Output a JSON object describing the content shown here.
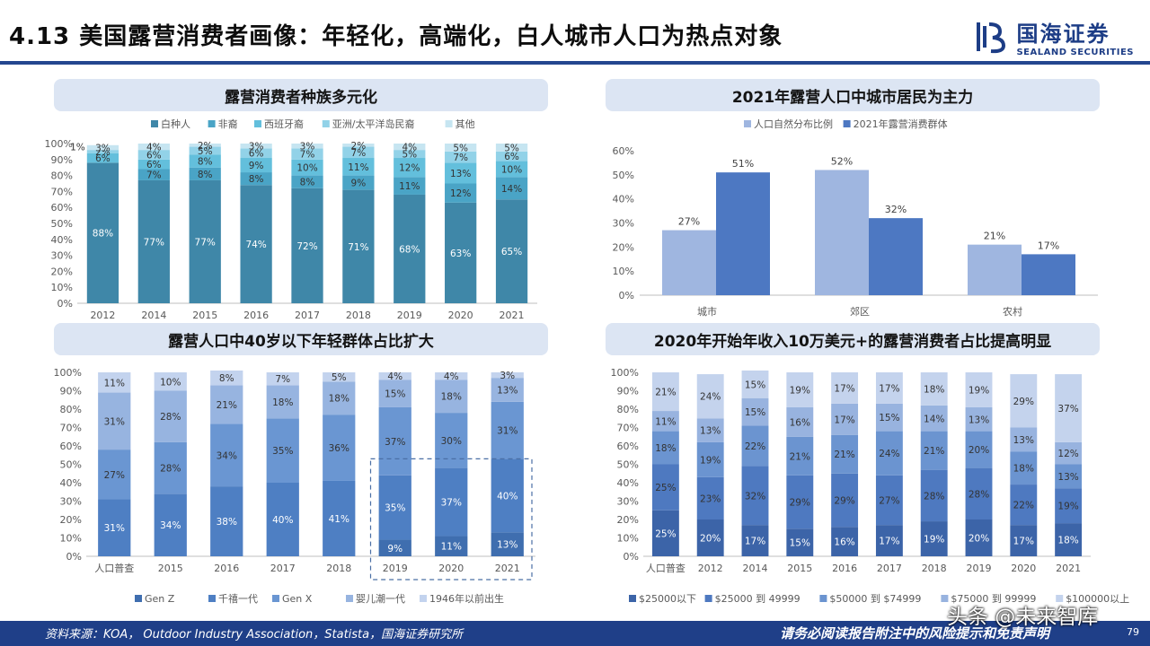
{
  "header": {
    "title": "4.13 美国露营消费者画像：年轻化，高端化，白人城市人口为热点对象",
    "logo_cn": "国海证券",
    "logo_en": "SEALAND SECURITIES"
  },
  "footer": {
    "source": "资料来源：KOA， Outdoor Industry Association，Statista，国海证券研究所",
    "disclaimer": "请务必阅读报告附注中的风险提示和免责声明",
    "page_number": "79",
    "watermark": "头条 @未来智库"
  },
  "colors": {
    "navy": "#1f3f88",
    "panel_title_bg": "#dce5f3"
  },
  "chart_data": [
    {
      "id": "race",
      "type": "bar",
      "stacked": true,
      "title": "露营消费者种族多元化",
      "categories": [
        "2012",
        "2014",
        "2015",
        "2016",
        "2017",
        "2018",
        "2019",
        "2020",
        "2021"
      ],
      "series": [
        {
          "name": "白种人",
          "color": "#3f87a8",
          "values": [
            88,
            77,
            77,
            74,
            72,
            71,
            68,
            63,
            65
          ]
        },
        {
          "name": "非裔",
          "color": "#4aa4c6",
          "values": [
            0,
            7,
            8,
            8,
            8,
            9,
            11,
            12,
            14
          ]
        },
        {
          "name": "西班牙裔",
          "color": "#63bfdc",
          "values": [
            6,
            6,
            8,
            9,
            10,
            11,
            12,
            13,
            10
          ]
        },
        {
          "name": "亚洲/太平洋岛民裔",
          "color": "#92d2e8",
          "values": [
            2,
            6,
            5,
            6,
            7,
            7,
            5,
            7,
            6
          ]
        },
        {
          "name": "其他",
          "color": "#c6e5f1",
          "values": [
            3,
            4,
            2,
            3,
            3,
            2,
            4,
            5,
            5
          ]
        }
      ],
      "labels": [
        [
          "88%",
          "",
          "6%",
          "2%",
          "3%"
        ],
        [
          "77%",
          "7%",
          "6%",
          "6%",
          "4%"
        ],
        [
          "77%",
          "8%",
          "8%",
          "5%",
          "2%"
        ],
        [
          "74%",
          "8%",
          "9%",
          "6%",
          "3%"
        ],
        [
          "72%",
          "8%",
          "10%",
          "7%",
          "3%"
        ],
        [
          "71%",
          "9%",
          "11%",
          "7%",
          "2%"
        ],
        [
          "68%",
          "11%",
          "12%",
          "5%",
          "4%"
        ],
        [
          "63%",
          "12%",
          "13%",
          "7%",
          "5%"
        ],
        [
          "65%",
          "14%",
          "10%",
          "6%",
          "5%"
        ]
      ],
      "extra_label": "1%",
      "yticks": [
        "0%",
        "10%",
        "20%",
        "30%",
        "40%",
        "50%",
        "60%",
        "70%",
        "80%",
        "90%",
        "100%"
      ],
      "legend_position": "top"
    },
    {
      "id": "urban",
      "type": "bar",
      "title": "2021年露营人口中城市居民为主力",
      "categories": [
        "城市",
        "郊区",
        "农村"
      ],
      "series": [
        {
          "name": "人口自然分布比例",
          "color": "#9fb6e0",
          "values": [
            27,
            52,
            21
          ]
        },
        {
          "name": "2021年露营消费群体",
          "color": "#4d78c2",
          "values": [
            51,
            32,
            17
          ]
        }
      ],
      "yticks": [
        "0%",
        "10%",
        "20%",
        "30%",
        "40%",
        "50%",
        "60%"
      ],
      "ylim": [
        0,
        60
      ],
      "legend_position": "top"
    },
    {
      "id": "age",
      "type": "bar",
      "stacked": true,
      "title": "露营人口中40岁以下年轻群体占比扩大",
      "categories": [
        "人口普查",
        "2015",
        "2016",
        "2017",
        "2018",
        "2019",
        "2020",
        "2021"
      ],
      "series": [
        {
          "name": "Gen Z",
          "color": "#3f6eaf",
          "values": [
            0,
            0,
            0,
            0,
            0,
            9,
            11,
            13
          ]
        },
        {
          "name": "千禧一代",
          "color": "#4e7fc3",
          "values": [
            31,
            34,
            38,
            40,
            41,
            35,
            37,
            40
          ]
        },
        {
          "name": "Gen X",
          "color": "#6a96d2",
          "values": [
            27,
            28,
            34,
            35,
            36,
            37,
            30,
            31
          ]
        },
        {
          "name": "婴儿潮一代",
          "color": "#97b4e0",
          "values": [
            31,
            28,
            21,
            18,
            18,
            15,
            18,
            13
          ]
        },
        {
          "name": "1946年以前出生",
          "color": "#c3d3ee",
          "values": [
            11,
            10,
            8,
            7,
            5,
            4,
            4,
            3
          ]
        }
      ],
      "yticks": [
        "0%",
        "10%",
        "20%",
        "30%",
        "40%",
        "50%",
        "60%",
        "70%",
        "80%",
        "90%",
        "100%"
      ],
      "legend_position": "bottom",
      "highlight": [
        "2019",
        "2020",
        "2021"
      ]
    },
    {
      "id": "income",
      "type": "bar",
      "stacked": true,
      "title": "2020年开始年收入10万美元+的露营消费者占比提高明显",
      "categories": [
        "人口普查",
        "2012",
        "2014",
        "2015",
        "2016",
        "2017",
        "2018",
        "2019",
        "2020",
        "2021"
      ],
      "series": [
        {
          "name": "$25000以下",
          "color": "#3c64a8",
          "values": [
            25,
            20,
            17,
            15,
            16,
            17,
            19,
            20,
            17,
            18
          ]
        },
        {
          "name": "$25000 到 49999",
          "color": "#4e79c0",
          "values": [
            25,
            23,
            32,
            29,
            29,
            27,
            28,
            28,
            22,
            19
          ]
        },
        {
          "name": "$50000 到 $74999",
          "color": "#6b94d0",
          "values": [
            18,
            19,
            22,
            21,
            21,
            24,
            21,
            20,
            18,
            13
          ]
        },
        {
          "name": "$75000 到 99999",
          "color": "#98b3df",
          "values": [
            11,
            13,
            15,
            16,
            17,
            15,
            14,
            13,
            13,
            12
          ]
        },
        {
          "name": "$100000以上",
          "color": "#c4d3ed",
          "values": [
            21,
            24,
            15,
            19,
            17,
            17,
            18,
            19,
            29,
            37
          ]
        }
      ],
      "yticks": [
        "0%",
        "10%",
        "20%",
        "30%",
        "40%",
        "50%",
        "60%",
        "70%",
        "80%",
        "90%",
        "100%"
      ],
      "legend_position": "bottom"
    }
  ]
}
